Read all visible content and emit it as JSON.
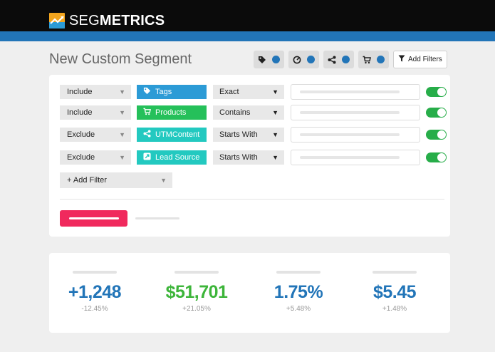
{
  "app": {
    "logo_light": "SEG",
    "logo_bold": "METRICS"
  },
  "page": {
    "title": "New Custom Segment"
  },
  "header": {
    "icons": [
      {
        "name": "tag-icon"
      },
      {
        "name": "target-icon"
      },
      {
        "name": "share-icon"
      },
      {
        "name": "cart-icon"
      }
    ],
    "add_filters_label": "Add Filters"
  },
  "filters": [
    {
      "mode": "Include",
      "field": "Tags",
      "field_icon": "tag-icon",
      "field_color": "#2c9bd6",
      "operator": "Exact",
      "enabled": true
    },
    {
      "mode": "Include",
      "field": "Products",
      "field_icon": "cart-icon",
      "field_color": "#25c05a",
      "operator": "Contains",
      "enabled": true
    },
    {
      "mode": "Exclude",
      "field": "UTMContent",
      "field_icon": "share-icon",
      "field_color": "#23c9c0",
      "operator": "Starts With",
      "enabled": true
    },
    {
      "mode": "Exclude",
      "field": "Lead Source",
      "field_icon": "link-icon",
      "field_color": "#23c9c0",
      "operator": "Starts With",
      "enabled": true
    }
  ],
  "add_filter_label": "+ Add Filter",
  "colors": {
    "accent_blue": "#2275b8",
    "accent_green": "#3db53a",
    "toggle_on": "#27ad49",
    "pink": "#f0295d"
  },
  "stats": [
    {
      "value": "+1,248",
      "delta": "-12.45%",
      "color": "#2275b8"
    },
    {
      "value": "$51,701",
      "delta": "+21.05%",
      "color": "#3db53a"
    },
    {
      "value": "1.75%",
      "delta": "+5.48%",
      "color": "#2275b8"
    },
    {
      "value": "$5.45",
      "delta": "+1.48%",
      "color": "#2275b8"
    }
  ]
}
